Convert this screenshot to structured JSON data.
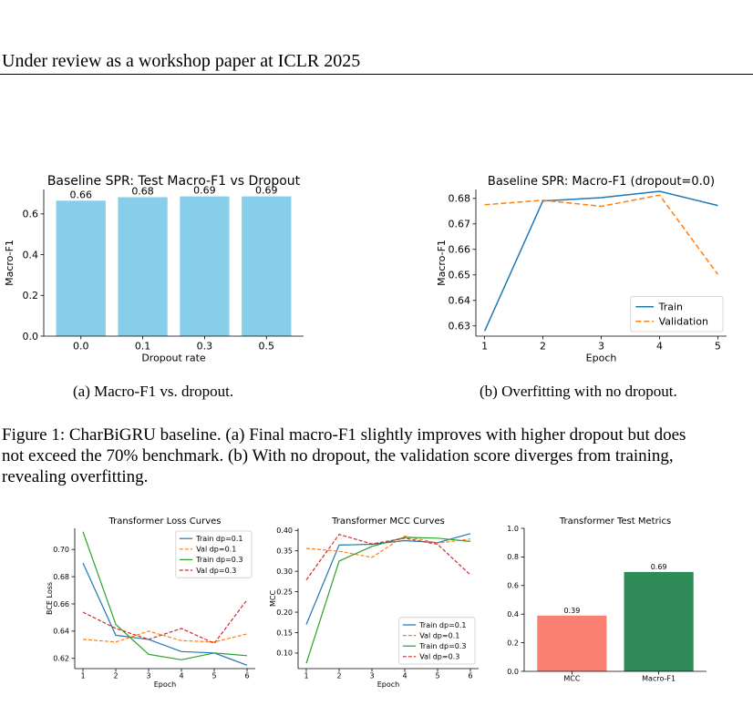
{
  "header": {
    "text": "Under review as a workshop paper at ICLR 2025"
  },
  "figure1": {
    "subcaption_a": "(a) Macro-F1 vs. dropout.",
    "subcaption_b": "(b) Overfitting with no dropout.",
    "caption_line1": "Figure 1: CharBiGRU baseline. (a) Final macro-F1 slightly improves with higher dropout but does",
    "caption_line2": "not exceed the 70% benchmark. (b) With no dropout, the validation score diverges from training,",
    "caption_line3": "revealing overfitting."
  },
  "colors": {
    "bar_blue": "#87ceeb",
    "train": "#1f77b4",
    "val": "#ff7f0e",
    "train03": "#2ca02c",
    "val03": "#d62728",
    "mcc_bar": "#fa8072",
    "f1_bar": "#2e8b57"
  },
  "chart_data": [
    {
      "id": "c1",
      "type": "bar",
      "title": "Baseline SPR: Test Macro-F1 vs Dropout",
      "xlabel": "Dropout rate",
      "ylabel": "Macro-F1",
      "categories": [
        "0.0",
        "0.1",
        "0.3",
        "0.5"
      ],
      "values": [
        0.665,
        0.682,
        0.686,
        0.686
      ],
      "value_labels": [
        "0.66",
        "0.68",
        "0.69",
        "0.69"
      ],
      "ylim": [
        0,
        0.72
      ],
      "yticks": [
        0.0,
        0.2,
        0.4,
        0.6
      ],
      "ytick_labels": [
        "0.0",
        "0.2",
        "0.4",
        "0.6"
      ]
    },
    {
      "id": "c2",
      "type": "line",
      "title": "Baseline SPR: Macro-F1 (dropout=0.0)",
      "xlabel": "Epoch",
      "ylabel": "Macro-F1",
      "x": [
        1,
        2,
        3,
        4,
        5
      ],
      "xticks": [
        1,
        2,
        3,
        4,
        5
      ],
      "xtick_labels": [
        "1",
        "2",
        "3",
        "4",
        "5"
      ],
      "xlim": [
        0.85,
        5.15
      ],
      "ylim": [
        0.626,
        0.6835
      ],
      "yticks": [
        0.63,
        0.64,
        0.65,
        0.66,
        0.67,
        0.68
      ],
      "ytick_labels": [
        "0.63",
        "0.64",
        "0.65",
        "0.66",
        "0.67",
        "0.68"
      ],
      "legend_position": "lower-right",
      "series": [
        {
          "name": "Train",
          "color_key": "train",
          "dashed": false,
          "values": [
            0.628,
            0.679,
            0.6803,
            0.6828,
            0.6772
          ]
        },
        {
          "name": "Validation",
          "color_key": "val",
          "dashed": true,
          "values": [
            0.6775,
            0.6793,
            0.6769,
            0.6813,
            0.6502
          ]
        }
      ]
    },
    {
      "id": "c3",
      "type": "line",
      "title": "Transformer Loss Curves",
      "xlabel": "Epoch",
      "ylabel": "BCE Loss",
      "x": [
        1,
        2,
        3,
        4,
        5,
        6
      ],
      "xticks": [
        1,
        2,
        3,
        4,
        5,
        6
      ],
      "xtick_labels": [
        "1",
        "2",
        "3",
        "4",
        "5",
        "6"
      ],
      "xlim": [
        0.75,
        6.25
      ],
      "ylim": [
        0.6125,
        0.7155
      ],
      "yticks": [
        0.62,
        0.64,
        0.66,
        0.68,
        0.7
      ],
      "ytick_labels": [
        "0.62",
        "0.64",
        "0.66",
        "0.68",
        "0.70"
      ],
      "legend_position": "top-right",
      "series": [
        {
          "name": "Train dp=0.1",
          "color_key": "train",
          "dashed": false,
          "values": [
            0.69,
            0.637,
            0.634,
            0.625,
            0.624,
            0.615
          ]
        },
        {
          "name": "Val dp=0.1",
          "color_key": "val",
          "dashed": true,
          "values": [
            0.634,
            0.632,
            0.64,
            0.633,
            0.632,
            0.638
          ]
        },
        {
          "name": "Train dp=0.3",
          "color_key": "train03",
          "dashed": false,
          "values": [
            0.713,
            0.645,
            0.623,
            0.619,
            0.624,
            0.622
          ]
        },
        {
          "name": "Val dp=0.3",
          "color_key": "val03",
          "dashed": true,
          "values": [
            0.654,
            0.642,
            0.634,
            0.642,
            0.631,
            0.663
          ]
        }
      ]
    },
    {
      "id": "c4",
      "type": "line",
      "title": "Transformer MCC Curves",
      "xlabel": "Epoch",
      "ylabel": "MCC",
      "x": [
        1,
        2,
        3,
        4,
        5,
        6
      ],
      "xticks": [
        1,
        2,
        3,
        4,
        5,
        6
      ],
      "xtick_labels": [
        "1",
        "2",
        "3",
        "4",
        "5",
        "6"
      ],
      "xlim": [
        0.75,
        6.25
      ],
      "ylim": [
        0.062,
        0.405
      ],
      "yticks": [
        0.1,
        0.15,
        0.2,
        0.25,
        0.3,
        0.35,
        0.4
      ],
      "ytick_labels": [
        "0.10",
        "0.15",
        "0.20",
        "0.25",
        "0.30",
        "0.35",
        "0.40"
      ],
      "legend_position": "lower-right",
      "series": [
        {
          "name": "Train dp=0.1",
          "color_key": "train",
          "dashed": false,
          "values": [
            0.17,
            0.364,
            0.366,
            0.375,
            0.37,
            0.392
          ]
        },
        {
          "name": "Val dp=0.1",
          "color_key": "val",
          "dashed": true,
          "values": [
            0.356,
            0.349,
            0.334,
            0.386,
            0.369,
            0.379
          ]
        },
        {
          "name": "Train dp=0.3",
          "color_key": "train03",
          "dashed": false,
          "values": [
            0.075,
            0.325,
            0.361,
            0.383,
            0.381,
            0.373
          ]
        },
        {
          "name": "Val dp=0.3",
          "color_key": "val03",
          "dashed": true,
          "values": [
            0.279,
            0.39,
            0.367,
            0.381,
            0.366,
            0.291
          ]
        }
      ]
    },
    {
      "id": "c5",
      "type": "bar",
      "title": "Transformer Test Metrics",
      "xlabel": "",
      "ylabel": "",
      "categories": [
        "MCC",
        "Macro-F1"
      ],
      "values": [
        0.39,
        0.695
      ],
      "value_labels": [
        "0.39",
        "0.69"
      ],
      "color_keys": [
        "mcc_bar",
        "f1_bar"
      ],
      "ylim": [
        0,
        1.0
      ],
      "yticks": [
        0.0,
        0.2,
        0.4,
        0.6,
        0.8,
        1.0
      ],
      "ytick_labels": [
        "0.0",
        "0.2",
        "0.4",
        "0.6",
        "0.8",
        "1.0"
      ]
    }
  ]
}
